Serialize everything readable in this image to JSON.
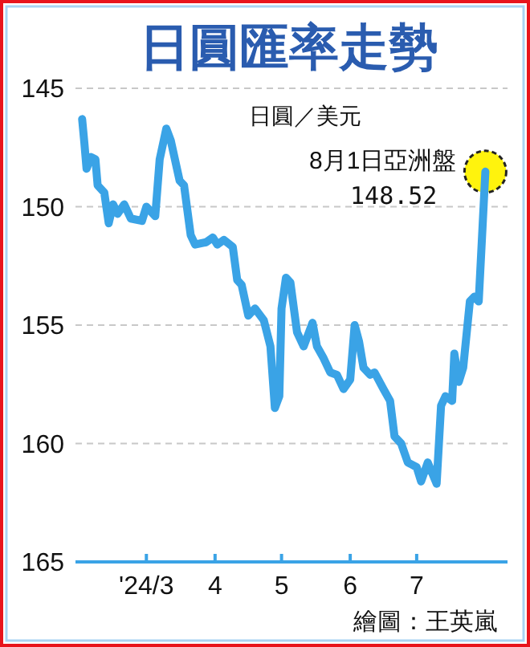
{
  "chart_data": {
    "type": "line",
    "title": "日圓匯率走勢",
    "ylabel": "日圓／美元",
    "x": [
      "2024-02-01",
      "2024-02-02",
      "2024-02-03",
      "2024-02-05",
      "2024-02-07",
      "2024-02-08",
      "2024-02-11",
      "2024-02-13",
      "2024-02-15",
      "2024-02-17",
      "2024-02-20",
      "2024-02-23",
      "2024-02-28",
      "2024-03-01",
      "2024-03-05",
      "2024-03-07",
      "2024-03-10",
      "2024-03-12",
      "2024-03-16",
      "2024-03-18",
      "2024-03-21",
      "2024-03-23",
      "2024-03-28",
      "2024-03-31",
      "2024-04-02",
      "2024-04-05",
      "2024-04-09",
      "2024-04-11",
      "2024-04-13",
      "2024-04-16",
      "2024-04-19",
      "2024-04-23",
      "2024-04-26",
      "2024-04-28",
      "2024-04-30",
      "2024-05-01",
      "2024-05-03",
      "2024-05-05",
      "2024-05-08",
      "2024-05-11",
      "2024-05-15",
      "2024-05-17",
      "2024-05-20",
      "2024-05-23",
      "2024-05-26",
      "2024-05-29",
      "2024-06-01",
      "2024-06-03",
      "2024-06-05",
      "2024-06-07",
      "2024-06-10",
      "2024-06-12",
      "2024-06-16",
      "2024-06-19",
      "2024-06-21",
      "2024-06-24",
      "2024-06-27",
      "2024-07-01",
      "2024-07-03",
      "2024-07-06",
      "2024-07-10",
      "2024-07-12",
      "2024-07-14",
      "2024-07-17",
      "2024-07-18",
      "2024-07-20",
      "2024-07-22",
      "2024-07-25",
      "2024-07-27",
      "2024-07-29",
      "2024-08-01"
    ],
    "series": [
      {
        "color": "#3aa3e6",
        "values": [
          146.3,
          147.3,
          148.4,
          147.9,
          148.0,
          149.1,
          149.4,
          150.7,
          149.9,
          150.3,
          149.9,
          150.5,
          150.6,
          150.0,
          150.4,
          148.0,
          146.7,
          147.2,
          148.9,
          149.1,
          151.2,
          151.6,
          151.5,
          151.3,
          151.6,
          151.4,
          151.7,
          153.1,
          153.3,
          154.6,
          154.3,
          154.8,
          155.9,
          158.5,
          158.0,
          154.3,
          153.0,
          153.2,
          155.3,
          155.9,
          154.9,
          155.9,
          156.4,
          157.0,
          157.1,
          157.7,
          157.3,
          155.0,
          155.7,
          156.8,
          157.1,
          157.0,
          157.7,
          158.2,
          159.7,
          160.0,
          160.8,
          161.0,
          161.6,
          160.8,
          161.7,
          158.4,
          158.0,
          158.2,
          156.2,
          157.4,
          156.8,
          154.0,
          153.8,
          154.0,
          148.52
        ]
      }
    ],
    "xlim": [
      "2024-01-29",
      "2024-08-11"
    ],
    "xticks": [
      {
        "value": "2024-03-01",
        "label": "'24/3"
      },
      {
        "value": "2024-04-01",
        "label": "4"
      },
      {
        "value": "2024-05-01",
        "label": "5"
      },
      {
        "value": "2024-06-01",
        "label": "6"
      },
      {
        "value": "2024-07-01",
        "label": "7"
      }
    ],
    "ylim": [
      165,
      145
    ],
    "yticks": [
      145,
      150,
      155,
      160,
      165
    ],
    "grid": "y",
    "annotations": [
      {
        "text": "8月1日亞洲盤",
        "x": "2024-08-01",
        "y": 148.52
      },
      {
        "text": "148.52",
        "x": "2024-08-01",
        "y": 148.52
      },
      "繪圖：王英嵐"
    ]
  }
}
